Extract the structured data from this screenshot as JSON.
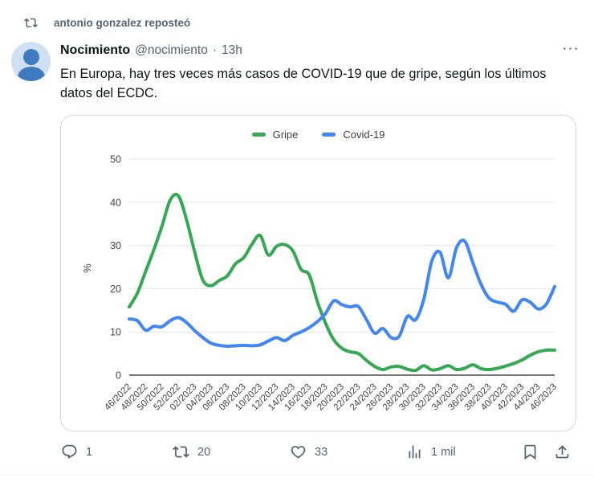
{
  "repost_header": {
    "label": "antonio gonzalez reposteó"
  },
  "tweet": {
    "author_name": "Nocimiento",
    "author_handle": "@nocimiento",
    "separator": "·",
    "timestamp": "13h",
    "text": "En Europa, hay tres veces más casos de COVID-19 que de gripe, según los últimos datos del ECDC."
  },
  "actions": {
    "replies": "1",
    "reposts": "20",
    "likes": "33",
    "views": "1 mil"
  },
  "chart_data": {
    "type": "line",
    "title": "",
    "xlabel": "",
    "ylabel": "%",
    "ylim": [
      0,
      50
    ],
    "y_ticks": [
      0,
      10,
      20,
      30,
      40,
      50
    ],
    "grid": true,
    "grid_color": "#e6e6e6",
    "baseline_color": "#757575",
    "tick_color": "#444444",
    "legend_position": "top-center",
    "x_unit": "ISO week",
    "x": [
      "46/2022",
      "47/2022",
      "48/2022",
      "49/2022",
      "50/2022",
      "51/2022",
      "52/2022",
      "01/2023",
      "02/2023",
      "03/2023",
      "04/2023",
      "05/2023",
      "06/2023",
      "07/2023",
      "08/2023",
      "09/2023",
      "10/2023",
      "11/2023",
      "12/2023",
      "13/2023",
      "14/2023",
      "15/2023",
      "16/2023",
      "17/2023",
      "18/2023",
      "19/2023",
      "20/2023",
      "21/2023",
      "22/2023",
      "23/2023",
      "24/2023",
      "25/2023",
      "26/2023",
      "27/2023",
      "28/2023",
      "29/2023",
      "30/2023",
      "31/2023",
      "32/2023",
      "33/2023",
      "34/2023",
      "35/2023",
      "36/2023",
      "37/2023",
      "38/2023",
      "39/2023",
      "40/2023",
      "41/2023",
      "42/2023",
      "43/2023",
      "44/2023",
      "45/2023",
      "46/2023"
    ],
    "x_tick_labels": [
      "46/2022",
      "48/2022",
      "50/2022",
      "52/2022",
      "02/2023",
      "04/2023",
      "06/2023",
      "08/2023",
      "10/2023",
      "12/2023",
      "14/2023",
      "16/2023",
      "18/2023",
      "20/2023",
      "22/2023",
      "24/2023",
      "26/2023",
      "28/2023",
      "30/2023",
      "32/2023",
      "34/2023",
      "36/2023",
      "38/2023",
      "40/2023",
      "42/2023",
      "44/2023",
      "46/2023"
    ],
    "series": [
      {
        "name": "Gripe",
        "color": "#34a853",
        "values": [
          15.8,
          19,
          24,
          29,
          34.5,
          40.5,
          41.5,
          36,
          28.5,
          22,
          20.7,
          21.9,
          23,
          25.8,
          27.2,
          30.3,
          32.3,
          27.8,
          29.8,
          30.2,
          28.8,
          24.5,
          23.2,
          17,
          12,
          8.2,
          6.2,
          5.4,
          5.0,
          3.4,
          2.0,
          1.3,
          1.9,
          2.0,
          1.4,
          1.1,
          2.2,
          1.2,
          1.5,
          2.2,
          1.3,
          1.6,
          2.4,
          1.5,
          1.3,
          1.6,
          2.1,
          2.7,
          3.5,
          4.6,
          5.4,
          5.8,
          5.8
        ]
      },
      {
        "name": "Covid-19",
        "color": "#4285f4",
        "values": [
          13,
          12.6,
          10.4,
          11.3,
          11.2,
          12.6,
          13.3,
          12.2,
          10.3,
          8.7,
          7.4,
          6.9,
          6.7,
          6.8,
          6.9,
          6.8,
          7.0,
          7.9,
          8.7,
          8.0,
          9.2,
          10.0,
          11.0,
          12.4,
          14.3,
          17.2,
          16.3,
          15.8,
          15.9,
          12.8,
          9.7,
          10.8,
          8.7,
          9.0,
          13.6,
          12.8,
          17.5,
          26.5,
          28.4,
          22.5,
          29.5,
          31.0,
          26.0,
          21.0,
          17.8,
          16.9,
          16.4,
          14.8,
          17.4,
          16.9,
          15.3,
          16.5,
          20.5
        ]
      }
    ]
  }
}
